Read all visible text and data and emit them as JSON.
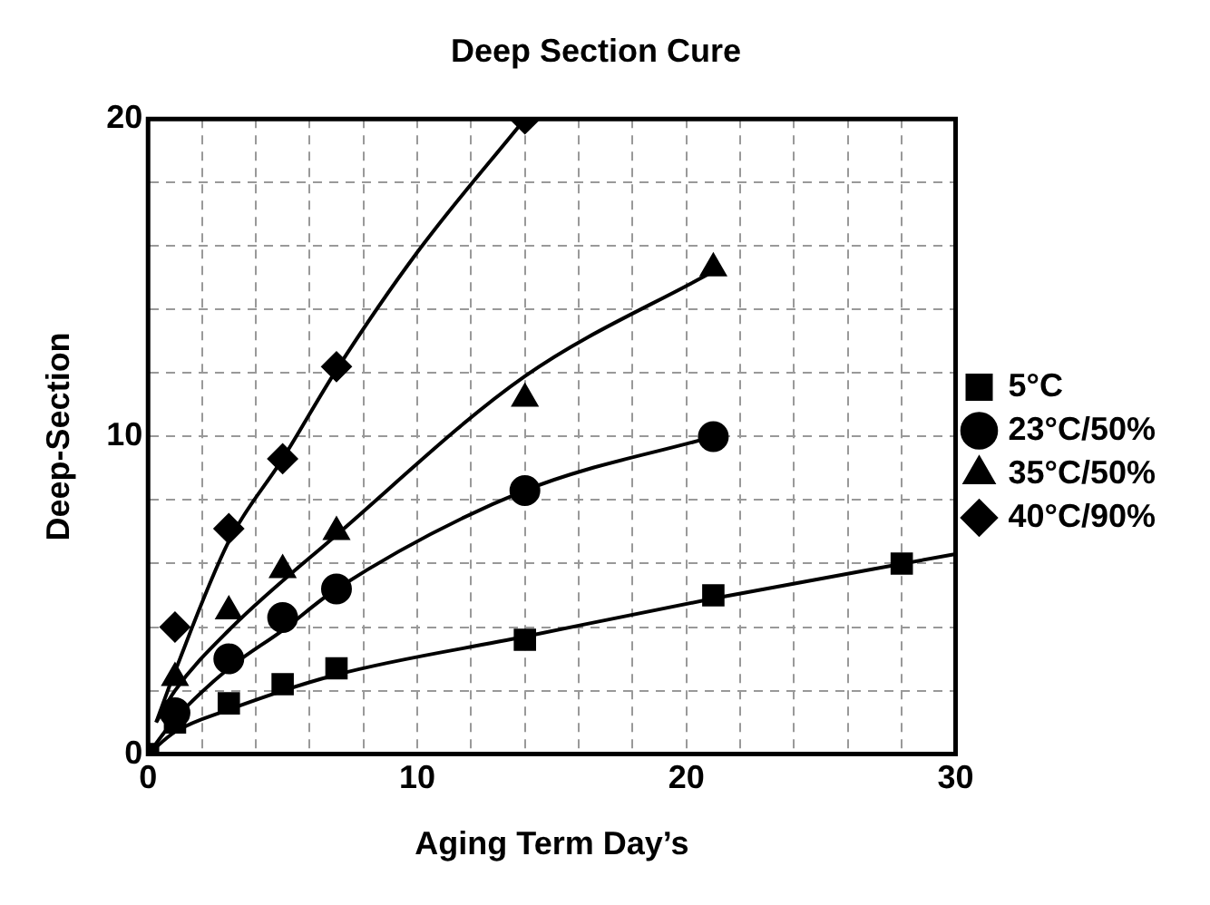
{
  "chart_data": {
    "type": "scatter",
    "title": "Deep Section Cure",
    "xlabel": "Aging Term Day’s",
    "ylabel": "Deep-Section",
    "xlim": [
      0,
      30
    ],
    "ylim": [
      0,
      20
    ],
    "xticks": [
      0,
      {
        "value": 2,
        "label": null
      },
      {
        "value": 4,
        "label": null
      },
      {
        "value": 6,
        "label": null
      },
      {
        "value": 8,
        "label": null
      },
      10,
      {
        "value": 12,
        "label": null
      },
      {
        "value": 14,
        "label": null
      },
      {
        "value": 16,
        "label": null
      },
      {
        "value": 18,
        "label": null
      },
      20,
      {
        "value": 22,
        "label": null
      },
      {
        "value": 24,
        "label": null
      },
      {
        "value": 26,
        "label": null
      },
      {
        "value": 28,
        "label": null
      },
      30
    ],
    "yticks": [
      0,
      {
        "value": 2,
        "label": null
      },
      {
        "value": 4,
        "label": null
      },
      {
        "value": 6,
        "label": null
      },
      {
        "value": 8,
        "label": null
      },
      10,
      {
        "value": 12,
        "label": null
      },
      {
        "value": 14,
        "label": null
      },
      {
        "value": 16,
        "label": null
      },
      {
        "value": 18,
        "label": null
      },
      20
    ],
    "grid": true,
    "legend": "right",
    "series": [
      {
        "name": "5°C",
        "type": "scatter",
        "marker": "square",
        "color": "#000000",
        "x": [
          0,
          1,
          3,
          5,
          7,
          14,
          21,
          28
        ],
        "values": [
          0,
          1,
          1.6,
          2.2,
          2.7,
          3.6,
          5,
          6
        ]
      },
      {
        "name": "23°C/50%",
        "type": "scatter",
        "marker": "circle",
        "color": "#000000",
        "x": [
          1,
          3,
          5,
          7,
          14,
          21
        ],
        "values": [
          1.3,
          3,
          4.3,
          5.2,
          8.3,
          10
        ]
      },
      {
        "name": "35°C/50%",
        "type": "scatter",
        "marker": "triangle",
        "color": "#000000",
        "x": [
          1,
          3,
          5,
          7,
          14,
          21
        ],
        "values": [
          2.4,
          4.5,
          5.8,
          7,
          11.2,
          15.3
        ]
      },
      {
        "name": "40°C/90%",
        "type": "scatter",
        "marker": "diamond",
        "color": "#000000",
        "x": [
          1,
          3,
          5,
          7,
          14
        ],
        "values": [
          4,
          7.1,
          9.3,
          12.2,
          20
        ]
      },
      {
        "type": "line",
        "marker": "none",
        "color": "#000000",
        "x": [
          0,
          1,
          3,
          7,
          14,
          21,
          30
        ],
        "values": [
          0,
          0.7,
          1.4,
          2.5,
          3.7,
          4.9,
          6.3
        ]
      },
      {
        "type": "line",
        "marker": "none",
        "color": "#000000",
        "x": [
          0,
          1,
          3,
          5,
          7,
          14,
          21
        ],
        "values": [
          0,
          1.1,
          2.7,
          3.9,
          5.2,
          8.3,
          10
        ]
      },
      {
        "type": "line",
        "marker": "none",
        "color": "#000000",
        "x": [
          0.3,
          1,
          3,
          7,
          14,
          21
        ],
        "values": [
          1,
          2,
          3.9,
          6.9,
          11.9,
          15.2
        ]
      },
      {
        "type": "line",
        "marker": "none",
        "color": "#000000",
        "x": [
          0.3,
          1,
          3,
          5,
          7,
          10,
          14
        ],
        "values": [
          1,
          2.6,
          6.7,
          9.3,
          12.1,
          15.8,
          20
        ]
      }
    ]
  }
}
